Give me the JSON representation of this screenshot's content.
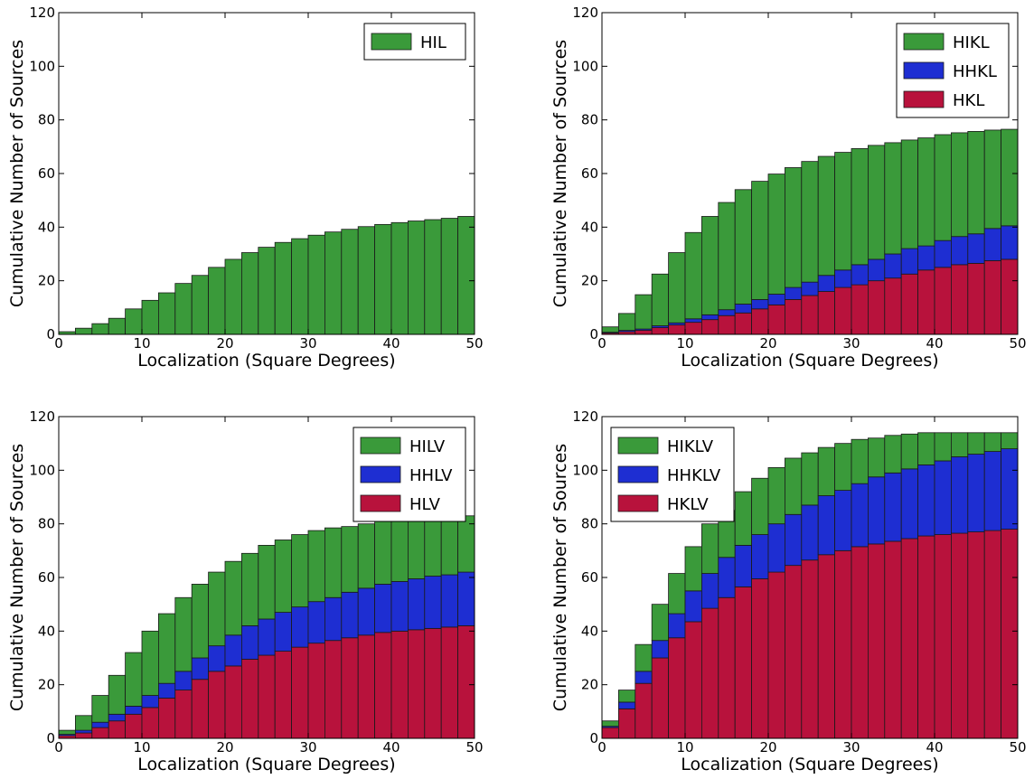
{
  "figure": {
    "xlabel": "Localization (Square Degrees)",
    "ylabel": "Cumulative Number of Sources"
  },
  "chart_data": [
    {
      "type": "bar",
      "stacked": true,
      "xlabel": "Localization (Square Degrees)",
      "ylabel": "Cumulative Number of Sources",
      "xlim": [
        0,
        50
      ],
      "ylim": [
        0,
        120
      ],
      "xticks": [
        0,
        10,
        20,
        30,
        40,
        50
      ],
      "yticks": [
        0,
        20,
        40,
        60,
        80,
        100,
        120
      ],
      "bin_edges": [
        0,
        2,
        4,
        6,
        8,
        10,
        12,
        14,
        16,
        18,
        20,
        22,
        24,
        26,
        28,
        30,
        32,
        34,
        36,
        38,
        40,
        42,
        44,
        46,
        48,
        50
      ],
      "legend_position": "upper-right",
      "series": [
        {
          "name": "HIL",
          "color": "#3a9a3a",
          "values": [
            1,
            2.3,
            4,
            6,
            9.5,
            12.7,
            15.5,
            19,
            22,
            25,
            28,
            30.5,
            32.5,
            34.3,
            35.7,
            37,
            38.2,
            39.2,
            40.2,
            41,
            41.7,
            42.3,
            42.8,
            43.3,
            44
          ]
        }
      ]
    },
    {
      "type": "bar",
      "stacked": true,
      "xlabel": "Localization (Square Degrees)",
      "ylabel": "Cumulative Number of Sources",
      "xlim": [
        0,
        50
      ],
      "ylim": [
        0,
        120
      ],
      "xticks": [
        0,
        10,
        20,
        30,
        40,
        50
      ],
      "yticks": [
        0,
        20,
        40,
        60,
        80,
        100,
        120
      ],
      "bin_edges": [
        0,
        2,
        4,
        6,
        8,
        10,
        12,
        14,
        16,
        18,
        20,
        22,
        24,
        26,
        28,
        30,
        32,
        34,
        36,
        38,
        40,
        42,
        44,
        46,
        48,
        50
      ],
      "legend_position": "upper-right",
      "series": [
        {
          "name": "HKL",
          "color": "#b8123c",
          "values": [
            0.5,
            1,
            1.5,
            2.5,
            3.5,
            4.5,
            5.5,
            7,
            8,
            9.5,
            11,
            13,
            14.5,
            16,
            17.5,
            18.5,
            20,
            21,
            22.5,
            24,
            25,
            26,
            26.5,
            27.5,
            28
          ]
        },
        {
          "name": "HHKL",
          "color": "#1e2ed2",
          "values": [
            0.3,
            0.5,
            0.5,
            0.7,
            0.8,
            1.3,
            1.8,
            2.2,
            3.3,
            3.5,
            4,
            4.5,
            5,
            6,
            6.5,
            7.5,
            8,
            9,
            9.5,
            9,
            10,
            10.5,
            11,
            12,
            12.5
          ]
        },
        {
          "name": "HIKL",
          "color": "#3a9a3a",
          "values": [
            2,
            6.3,
            12.8,
            19.3,
            26.2,
            32.2,
            36.7,
            40,
            42.7,
            44.1,
            44.8,
            44.7,
            45,
            44.4,
            43.9,
            43.3,
            42.5,
            41.5,
            40.5,
            40.3,
            39.5,
            38.7,
            38.2,
            36.7,
            36
          ]
        }
      ]
    },
    {
      "type": "bar",
      "stacked": true,
      "xlabel": "Localization (Square Degrees)",
      "ylabel": "Cumulative Number of Sources",
      "xlim": [
        0,
        50
      ],
      "ylim": [
        0,
        120
      ],
      "xticks": [
        0,
        10,
        20,
        30,
        40,
        50
      ],
      "yticks": [
        0,
        20,
        40,
        60,
        80,
        100,
        120
      ],
      "bin_edges": [
        0,
        2,
        4,
        6,
        8,
        10,
        12,
        14,
        16,
        18,
        20,
        22,
        24,
        26,
        28,
        30,
        32,
        34,
        36,
        38,
        40,
        42,
        44,
        46,
        48,
        50
      ],
      "legend_position": "upper-right",
      "series": [
        {
          "name": "HLV",
          "color": "#b8123c",
          "values": [
            1,
            2,
            4,
            6.5,
            9,
            11.5,
            15,
            18,
            22,
            25,
            27,
            29.5,
            31,
            32.5,
            34,
            35.5,
            36.5,
            37.5,
            38.5,
            39.5,
            40,
            40.5,
            41,
            41.5,
            42
          ]
        },
        {
          "name": "HHLV",
          "color": "#1e2ed2",
          "values": [
            0.5,
            1,
            2,
            2.5,
            3,
            4.5,
            5.5,
            7,
            8,
            9.5,
            11.5,
            12.5,
            13.5,
            14.5,
            15,
            15.5,
            16,
            17,
            17.5,
            18,
            18.5,
            19,
            19.5,
            19.5,
            20
          ]
        },
        {
          "name": "HILV",
          "color": "#3a9a3a",
          "values": [
            1.5,
            5.5,
            10,
            14.5,
            20,
            24,
            26,
            27.5,
            27.5,
            27.5,
            27.5,
            27,
            27.5,
            27,
            27,
            26.5,
            26,
            24.5,
            24,
            23.5,
            23,
            22.5,
            22,
            21.5,
            21
          ]
        }
      ]
    },
    {
      "type": "bar",
      "stacked": true,
      "xlabel": "Localization (Square Degrees)",
      "ylabel": "Cumulative Number of Sources",
      "xlim": [
        0,
        50
      ],
      "ylim": [
        0,
        120
      ],
      "xticks": [
        0,
        10,
        20,
        30,
        40,
        50
      ],
      "yticks": [
        0,
        20,
        40,
        60,
        80,
        100,
        120
      ],
      "bin_edges": [
        0,
        2,
        4,
        6,
        8,
        10,
        12,
        14,
        16,
        18,
        20,
        22,
        24,
        26,
        28,
        30,
        32,
        34,
        36,
        38,
        40,
        42,
        44,
        46,
        48,
        50
      ],
      "legend_position": "upper-left",
      "series": [
        {
          "name": "HKLV",
          "color": "#b8123c",
          "values": [
            4,
            11,
            20.5,
            30,
            37.5,
            43.5,
            48.5,
            52.5,
            56.5,
            59.5,
            62,
            64.5,
            66.5,
            68.5,
            70,
            71.5,
            72.5,
            73.5,
            74.5,
            75.5,
            76,
            76.5,
            77,
            77.5,
            78
          ]
        },
        {
          "name": "HHKLV",
          "color": "#1e2ed2",
          "values": [
            0.5,
            2.5,
            4.5,
            6.5,
            9,
            11.5,
            13,
            15,
            15.5,
            16.5,
            18,
            19,
            20.5,
            22,
            22.5,
            23.5,
            25,
            25.5,
            26,
            26.5,
            27.5,
            28.5,
            29,
            29.5,
            30
          ]
        },
        {
          "name": "HIKLV",
          "color": "#3a9a3a",
          "values": [
            2,
            4.5,
            10,
            13.5,
            15,
            16.5,
            18.5,
            17.5,
            20,
            21,
            21,
            21,
            19.5,
            18,
            17.5,
            16.5,
            14.5,
            14,
            13,
            12,
            10.5,
            9,
            8,
            7,
            6
          ]
        }
      ]
    }
  ]
}
